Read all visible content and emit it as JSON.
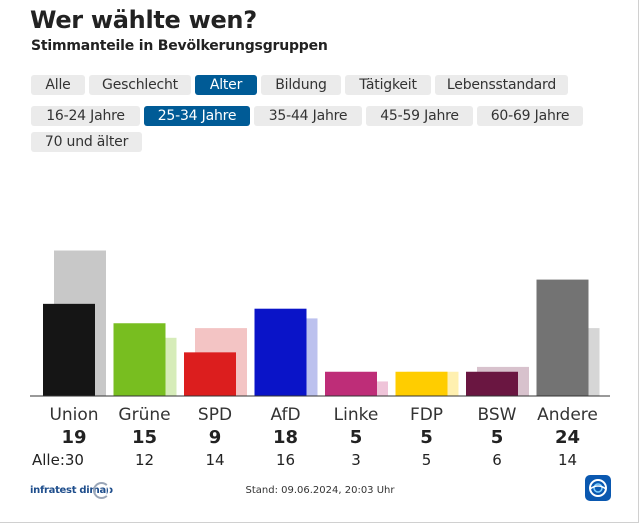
{
  "header": {
    "title": "Wer wählte wen?",
    "subtitle": "Stimmanteile in Bevölkerungsgruppen"
  },
  "category_tabs": [
    {
      "label": "Alle",
      "active": false
    },
    {
      "label": "Geschlecht",
      "active": false
    },
    {
      "label": "Alter",
      "active": true
    },
    {
      "label": "Bildung",
      "active": false
    },
    {
      "label": "Tätigkeit",
      "active": false
    },
    {
      "label": "Lebensstandard",
      "active": false
    }
  ],
  "age_tabs": [
    {
      "label": "16-24 Jahre",
      "active": false
    },
    {
      "label": "25-34 Jahre",
      "active": true
    },
    {
      "label": "35-44 Jahre",
      "active": false
    },
    {
      "label": "45-59 Jahre",
      "active": false
    },
    {
      "label": "60-69 Jahre",
      "active": false
    },
    {
      "label": "70 und älter",
      "active": false
    }
  ],
  "chart_data": {
    "type": "bar",
    "title": "Wer wählte wen?",
    "subtitle": "Stimmanteile in Bevölkerungsgruppen",
    "group": "25-34 Jahre",
    "categories": [
      "Union",
      "Grüne",
      "SPD",
      "AfD",
      "Linke",
      "FDP",
      "BSW",
      "Andere"
    ],
    "series": [
      {
        "name": "25-34 Jahre",
        "values": [
          19,
          15,
          9,
          18,
          5,
          5,
          5,
          24
        ]
      },
      {
        "name": "Alle",
        "values": [
          30,
          12,
          14,
          16,
          3,
          5,
          6,
          14
        ]
      }
    ],
    "all_prefix": "Alle:",
    "colors": [
      "#151515",
      "#78be20",
      "#dc1e1e",
      "#0a14c8",
      "#be2d78",
      "#ffcd00",
      "#6a1641",
      "#737373"
    ],
    "light_colors": [
      "#c8c8c8",
      "#d6ecb9",
      "#f3c4c4",
      "#bcc1ee",
      "#efc4d9",
      "#fff0b0",
      "#d8c2cd",
      "#d6d6d6"
    ],
    "ylim": [
      0,
      30
    ]
  },
  "footer": {
    "source": "infratest dimap",
    "stand": "Stand: 09.06.2024, 20:03 Uhr"
  }
}
